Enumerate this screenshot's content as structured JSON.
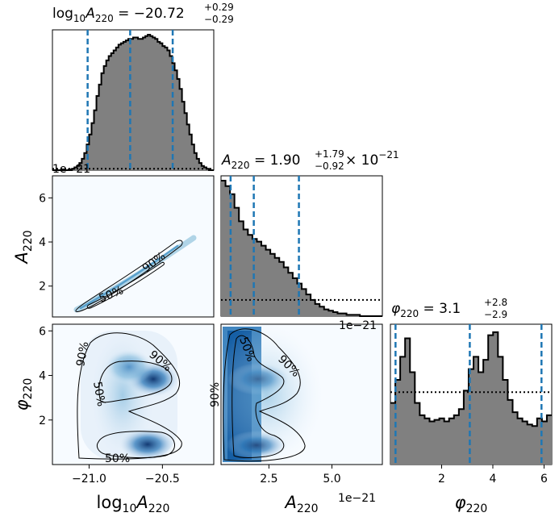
{
  "chart_data": {
    "type": "corner",
    "parameters": [
      {
        "id": "log10A",
        "label": "log",
        "label_sub": "10",
        "label_main": "A",
        "label_main_sub": "220"
      },
      {
        "id": "A",
        "label_main": "A",
        "label_main_sub": "220"
      },
      {
        "id": "phi",
        "label_main": "φ",
        "label_main_sub": "220"
      }
    ],
    "titles": [
      {
        "prefix": "log",
        "prefix_sub": "10",
        "sym": "A",
        "sym_sub": "220",
        "eq": " = −20.72",
        "sup": "+0.29",
        "sub": "−0.29",
        "suffix": ""
      },
      {
        "prefix": "",
        "prefix_sub": "",
        "sym": "A",
        "sym_sub": "220",
        "eq": " = 1.90",
        "sup": "+1.79",
        "sub": "−0.92",
        "suffix": " × 10",
        "suffix_sup": "−21"
      },
      {
        "prefix": "",
        "prefix_sub": "",
        "sym": "φ",
        "sym_sub": "220",
        "eq": " = 3.1",
        "sup": "+2.8",
        "sub": "−2.9",
        "suffix": ""
      }
    ],
    "offset_text": "1e−21",
    "ranges": {
      "log10A": [
        -21.25,
        -20.15
      ],
      "A": [
        0.6,
        7.0
      ],
      "phi": [
        0.0,
        6.3
      ]
    },
    "ticks": {
      "log10A": {
        "values": [
          -21.0,
          -20.5
        ],
        "labels": [
          "−21.0",
          "−20.5"
        ]
      },
      "A_y": {
        "values": [
          2,
          4,
          6
        ],
        "labels": [
          "2",
          "4",
          "6"
        ]
      },
      "A_x": {
        "values": [
          2.5,
          5.0
        ],
        "labels": [
          "2.5",
          "5.0"
        ]
      },
      "phi": {
        "values": [
          2,
          4,
          6
        ],
        "labels": [
          "2",
          "4",
          "6"
        ]
      }
    },
    "histograms": {
      "log10A": {
        "bins": [
          -21.25,
          -20.15
        ],
        "counts": [
          0,
          0,
          0,
          0,
          0,
          0,
          0,
          0,
          1,
          2,
          3,
          5,
          8,
          12,
          18,
          25,
          33,
          42,
          52,
          60,
          68,
          73,
          77,
          80,
          82,
          84,
          86,
          88,
          89,
          90,
          91,
          92,
          92,
          93,
          93,
          92,
          92,
          93,
          94,
          95,
          94,
          93,
          92,
          90,
          89,
          87,
          86,
          84,
          80,
          75,
          70,
          64,
          57,
          48,
          40,
          32,
          25,
          18,
          12,
          8,
          5,
          3,
          2,
          1,
          0,
          0
        ],
        "quantiles": [
          -21.01,
          -20.72,
          -20.43
        ],
        "prior": [
          1.0,
          1.0
        ]
      },
      "A": {
        "bins": [
          0.6,
          7.0
        ],
        "counts": [
          100,
          96,
          90,
          80,
          70,
          64,
          60,
          57,
          55,
          52,
          49,
          46,
          43,
          40,
          36,
          32,
          28,
          24,
          20,
          16,
          12,
          9,
          7,
          5,
          4,
          3,
          2,
          2,
          1,
          1,
          1,
          0,
          0,
          0,
          0,
          0
        ],
        "quantiles": [
          0.98,
          1.9,
          3.69
        ],
        "prior": [
          12,
          12
        ]
      },
      "phi": {
        "bins": [
          0.0,
          6.3
        ],
        "counts": [
          40,
          55,
          70,
          82,
          60,
          40,
          32,
          30,
          28,
          29,
          30,
          28,
          30,
          32,
          36,
          48,
          62,
          70,
          60,
          68,
          84,
          86,
          70,
          55,
          42,
          34,
          30,
          28,
          26,
          25,
          30,
          28,
          32
        ],
        "quantiles": [
          0.2,
          3.1,
          5.9
        ],
        "prior": [
          47,
          47
        ]
      }
    },
    "contour_levels": [
      "50%",
      "90%"
    ],
    "colors": {
      "hist_fill": "#808080",
      "quantile_line": "#1f77b4",
      "density_low": "#f7fbff",
      "density_high": "#08306b"
    }
  }
}
